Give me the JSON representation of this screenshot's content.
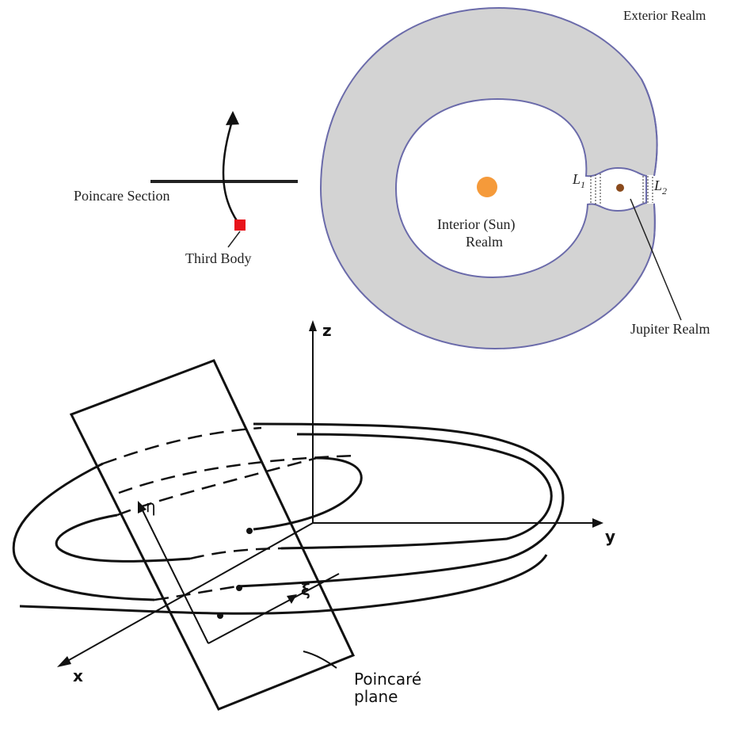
{
  "top_left": {
    "poincare_section_label": "Poincare Section",
    "third_body_label": "Third Body",
    "colors": {
      "marker": "#e8141b",
      "line": "#222222"
    }
  },
  "realms": {
    "exterior_label": "Exterior Realm",
    "interior_label_line1": "Interior (Sun)",
    "interior_label_line2": "Realm",
    "jupiter_label": "Jupiter Realm",
    "l1_label": "L",
    "l1_sub": "1",
    "l2_label": "L",
    "l2_sub": "2",
    "colors": {
      "forbidden_fill": "#d3d3d3",
      "boundary": "#6b6baa",
      "sun": "#f59a3a",
      "jupiter": "#8a4a1c"
    }
  },
  "plane_diagram": {
    "axis_z": "z",
    "axis_y": "y",
    "axis_x": "x",
    "axis_eta": "η",
    "axis_xi": "ξ",
    "plane_label_line1": "Poincaré",
    "plane_label_line2": "plane"
  }
}
